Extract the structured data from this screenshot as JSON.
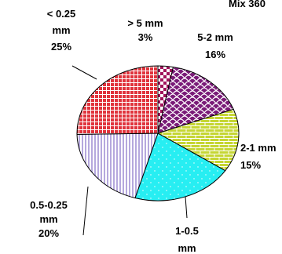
{
  "chart_data": {
    "type": "pie",
    "title": "Mix 360",
    "slices": [
      {
        "label_lines": [
          "> 5 mm",
          "3%"
        ],
        "value": 3,
        "color": "#a0135b",
        "pattern": "checker"
      },
      {
        "label_lines": [
          "5-2 mm",
          "16%"
        ],
        "value": 16,
        "color": "#7a1b78",
        "pattern": "scales"
      },
      {
        "label_lines": [
          "2-1 mm",
          "15%"
        ],
        "value": 15,
        "color": "#c5d633",
        "pattern": "brick"
      },
      {
        "label_lines": [
          "1-0.5",
          "mm"
        ],
        "value": 20,
        "color": "#27eef2",
        "pattern": "sparkle"
      },
      {
        "label_lines": [
          "0.5-0.25",
          "mm",
          "20%"
        ],
        "value": 20,
        "color": "#b5a8dd",
        "pattern": "vlines"
      },
      {
        "label_lines": [
          "< 0.25",
          "mm",
          "25%"
        ],
        "value": 25,
        "color": "#e0333c",
        "pattern": "grid"
      }
    ],
    "legend": "none"
  }
}
